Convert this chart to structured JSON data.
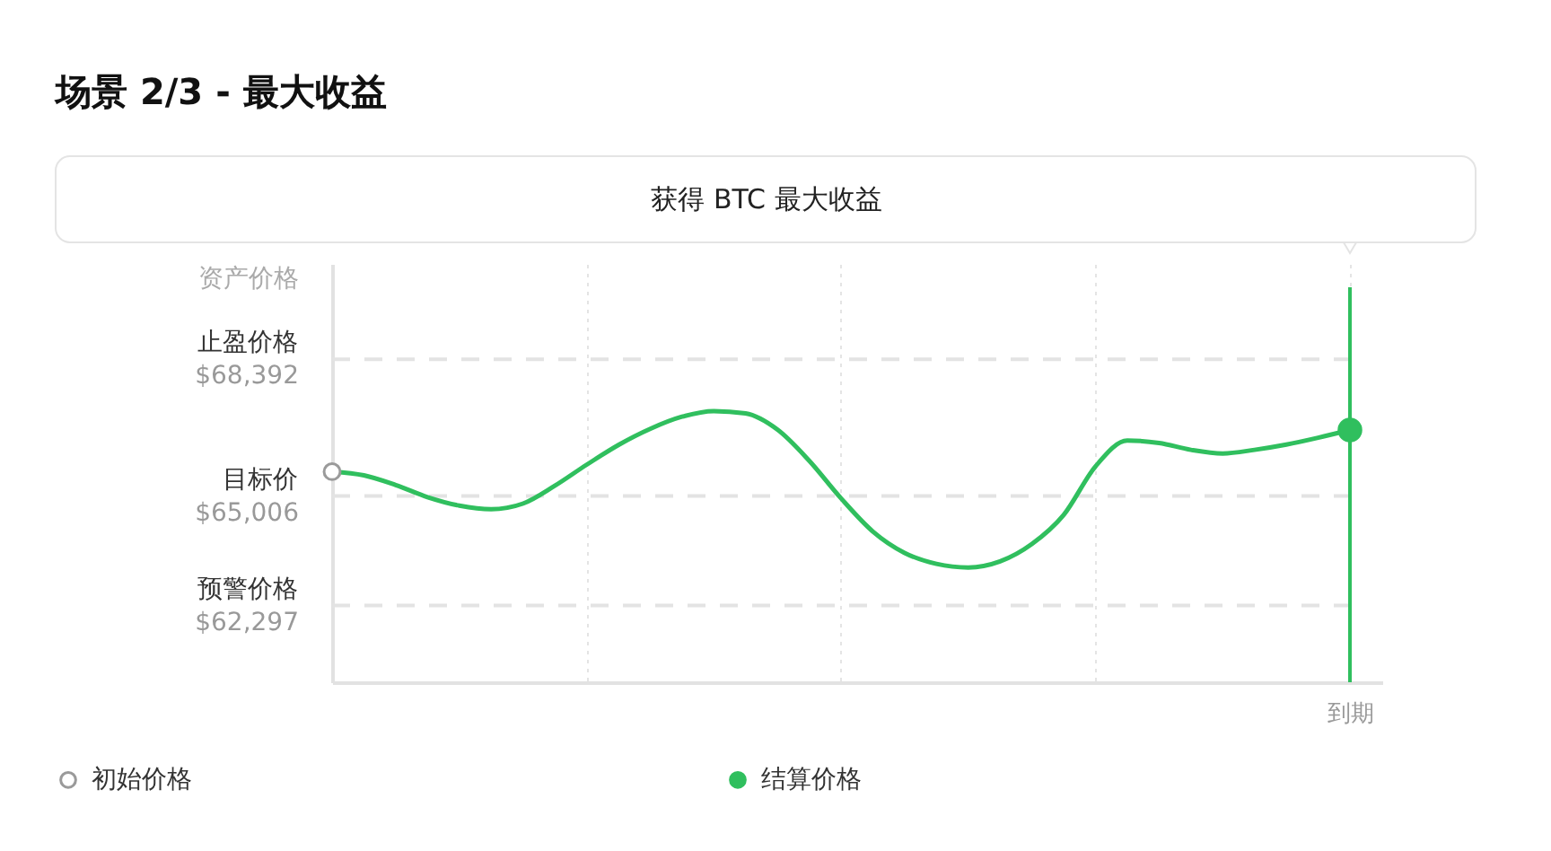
{
  "chart_data": {
    "type": "line",
    "title": "场景 2/3 - 最大收益",
    "subtitle": "获得 BTC 最大收益",
    "ylabel": "资产价格",
    "categories": [
      null,
      null,
      null,
      null,
      null,
      null,
      null,
      null,
      null,
      null,
      null,
      null,
      null,
      null,
      null,
      null,
      null,
      null,
      null,
      null,
      null,
      null,
      null,
      null,
      null,
      null,
      null,
      null,
      null,
      null,
      null,
      null,
      "到期"
    ],
    "ylim": [
      60400,
      70750
    ],
    "yticks": [
      {
        "value": 62297,
        "label": "$62,297"
      },
      {
        "value": 65006,
        "label": "$65,006"
      },
      {
        "value": 68392,
        "label": "$68,392"
      }
    ],
    "grid": "x",
    "legend": "bottom",
    "series": [
      {
        "color": "#30bf5e",
        "values": [
          65610,
          65520,
          65280,
          64980,
          64770,
          64680,
          64820,
          65260,
          65780,
          66270,
          66670,
          66970,
          67110,
          67050,
          66650,
          65880,
          64950,
          64130,
          63600,
          63330,
          63240,
          63390,
          63820,
          64540,
          65740,
          66380,
          66320,
          66150,
          66060,
          66150,
          66280,
          66450,
          66640
        ]
      },
      {
        "type": "scatter",
        "name": "初始价格",
        "color": "#ffffff",
        "marker": "circle",
        "values": [
          65610,
          null,
          null,
          null,
          null,
          null,
          null,
          null,
          null,
          null,
          null,
          null,
          null,
          null,
          null,
          null,
          null,
          null,
          null,
          null,
          null,
          null,
          null,
          null,
          null,
          null,
          null,
          null,
          null,
          null,
          null,
          null,
          null
        ]
      },
      {
        "type": "scatter",
        "name": "结算价格",
        "color": "#30bf5e",
        "marker": "circle",
        "values": [
          null,
          null,
          null,
          null,
          null,
          null,
          null,
          null,
          null,
          null,
          null,
          null,
          null,
          null,
          null,
          null,
          null,
          null,
          null,
          null,
          null,
          null,
          null,
          null,
          null,
          null,
          null,
          null,
          null,
          null,
          null,
          null,
          66640
        ]
      }
    ],
    "ref_lines": [
      {
        "axis": "y",
        "value": 68392,
        "label": "止盈价格",
        "color": "#e3e3e3",
        "line_style": "dashed"
      },
      {
        "axis": "y",
        "value": 65006,
        "label": "目标价",
        "color": "#e3e3e3",
        "line_style": "dashed"
      },
      {
        "axis": "y",
        "value": 62297,
        "label": "预警价格",
        "color": "#e3e3e3",
        "line_style": "dashed"
      },
      {
        "axis": "x",
        "value": "到期",
        "color": "#30bf5e"
      }
    ]
  }
}
